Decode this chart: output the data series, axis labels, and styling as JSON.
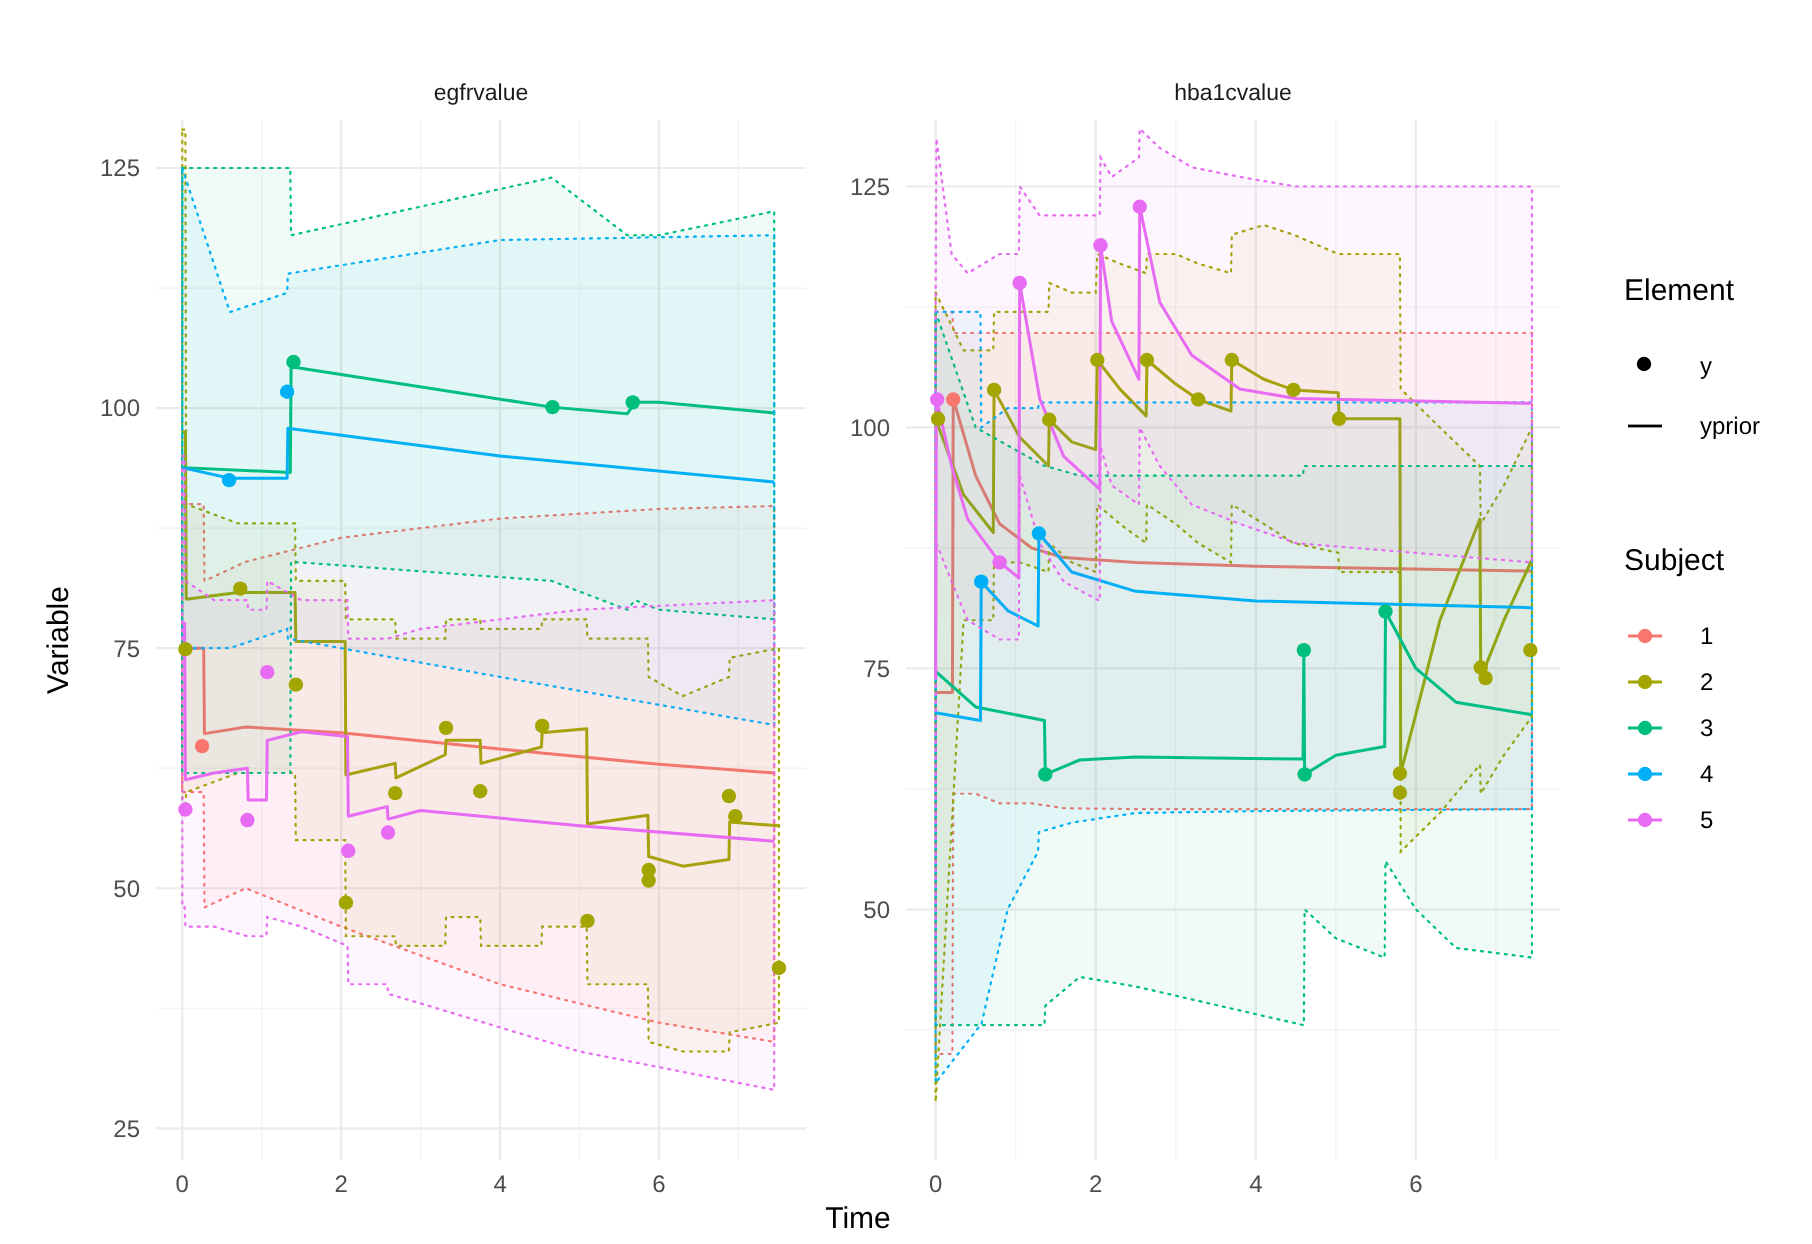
{
  "chart_data": [
    {
      "type": "line",
      "title": "egfrvalue",
      "xlabel": "Time",
      "ylabel": "Variable",
      "xlim": [
        -0.33,
        7.85
      ],
      "ylim": [
        21.7,
        130
      ],
      "xticks": [
        0,
        2,
        4,
        6
      ],
      "yticks": [
        25,
        50,
        75,
        100,
        125
      ],
      "grid": true,
      "legend": false,
      "line_style": "solid",
      "series": [
        {
          "marker": "none",
          "color": "#f8766d",
          "x": [
            0,
            0.27,
            0.28,
            0.8,
            2,
            4,
            6,
            7.45
          ],
          "values": [
            75,
            75,
            66.1,
            66.8,
            66.2,
            64.5,
            62.9,
            62
          ],
          "upper": [
            90,
            90,
            82,
            84,
            86.5,
            88.5,
            89.5,
            89.8
          ],
          "lower": [
            60,
            60,
            48,
            50,
            46,
            40,
            36,
            34
          ]
        },
        {
          "marker": "none",
          "color": "#a3a500",
          "x": [
            0,
            0.04,
            0.05,
            0.7,
            1.42,
            1.43,
            2.05,
            2.06,
            2.68,
            2.69,
            3.31,
            3.32,
            3.75,
            3.76,
            4.52,
            4.53,
            5.09,
            5.1,
            5.86,
            5.87,
            6.3,
            6.88,
            6.89,
            7.51
          ],
          "values": [
            97.5,
            97.5,
            80.1,
            80.8,
            80.8,
            75.7,
            75.7,
            61.8,
            63,
            61.5,
            63.9,
            65.4,
            65.4,
            63,
            64.7,
            66.2,
            66.6,
            56.7,
            57.6,
            53.3,
            52.3,
            53,
            56.9,
            56.5
          ],
          "upper": [
            129,
            129,
            90,
            88,
            88,
            82,
            82,
            78,
            78,
            76,
            76,
            78,
            78,
            77,
            77,
            78,
            78,
            76,
            76,
            72,
            70,
            72,
            74,
            75
          ],
          "lower": [
            58,
            58,
            60,
            62,
            62,
            55,
            55,
            45,
            45,
            44,
            44,
            47,
            47,
            44,
            44,
            46,
            46,
            40,
            40,
            34,
            33,
            33,
            35,
            36
          ]
        },
        {
          "marker": "none",
          "color": "#00bf7d",
          "x": [
            0,
            1.36,
            1.37,
            4.65,
            5.6,
            5.7,
            6,
            7.45
          ],
          "values": [
            93.8,
            93.3,
            104.3,
            100.1,
            99.4,
            100.6,
            100.6,
            99.5
          ],
          "upper": [
            125,
            125,
            118,
            124,
            118,
            118,
            118,
            120.5
          ],
          "lower": [
            62,
            62,
            84,
            82,
            79,
            80,
            79,
            78
          ]
        },
        {
          "marker": "none",
          "color": "#00b0f6",
          "x": [
            0,
            0.6,
            1.32,
            1.33,
            4,
            7.45
          ],
          "values": [
            93.8,
            92.7,
            92.7,
            97.9,
            95,
            92.3
          ],
          "upper": [
            125,
            110,
            112,
            114,
            117.5,
            118
          ],
          "lower": [
            75,
            75,
            77,
            76,
            72,
            67
          ]
        },
        {
          "marker": "none",
          "color": "#e76bf3",
          "x": [
            0,
            0.03,
            0.04,
            0.4,
            0.82,
            0.83,
            1.06,
            1.07,
            1.5,
            2.08,
            2.09,
            2.58,
            2.59,
            3,
            5,
            7.45
          ],
          "values": [
            77.6,
            77.6,
            61.3,
            62,
            62.5,
            59.2,
            59.2,
            65.4,
            66.3,
            65.8,
            57.5,
            58.5,
            57.2,
            58.1,
            56.5,
            54.9
          ],
          "upper": [
            95,
            95,
            82,
            80,
            80,
            79,
            79,
            82,
            80,
            80,
            76,
            76,
            76,
            77,
            79,
            80
          ],
          "lower": [
            48,
            48,
            46,
            46,
            45,
            45,
            45,
            47,
            46,
            44,
            40,
            40,
            39,
            38,
            33,
            29
          ]
        },
        {
          "type": "scatter",
          "marker": "circle",
          "color": "#f8766d",
          "x": [
            0.25
          ],
          "values": [
            64.8
          ]
        },
        {
          "type": "scatter",
          "marker": "circle",
          "color": "#a3a500",
          "x": [
            0.04,
            0.73,
            1.43,
            2.06,
            2.68,
            3.32,
            3.75,
            4.53,
            5.1,
            5.87,
            5.87,
            6.88,
            6.96,
            7.51
          ],
          "values": [
            74.9,
            81.2,
            71.2,
            48.5,
            59.9,
            66.7,
            60.1,
            66.9,
            46.6,
            51.9,
            50.8,
            59.6,
            57.5,
            41.7
          ]
        },
        {
          "type": "scatter",
          "marker": "circle",
          "color": "#00bf7d",
          "x": [
            1.4,
            4.66,
            5.67
          ],
          "values": [
            104.8,
            100.1,
            100.6
          ]
        },
        {
          "type": "scatter",
          "marker": "circle",
          "color": "#00b0f6",
          "x": [
            0.59,
            1.32
          ],
          "values": [
            92.5,
            101.7
          ]
        },
        {
          "type": "scatter",
          "marker": "circle",
          "color": "#e76bf3",
          "x": [
            0.04,
            0.82,
            1.07,
            2.09,
            2.59
          ],
          "values": [
            58.2,
            57.1,
            72.5,
            53.9,
            55.8
          ]
        }
      ]
    },
    {
      "type": "line",
      "title": "hba1cvalue",
      "xlim": [
        -0.37,
        7.8
      ],
      "ylim": [
        24,
        131.9
      ],
      "xticks": [
        0,
        2,
        4,
        6
      ],
      "yticks": [
        50,
        75,
        100,
        125
      ],
      "grid": true,
      "legend": "right",
      "legend_title": "Subject",
      "annotations": [
        "Element",
        "y",
        "yprior"
      ],
      "line_style": "solid",
      "series": [
        {
          "marker": "none",
          "name": "1",
          "color": "#f8766d",
          "x": [
            0,
            0.21,
            0.22,
            0.5,
            0.8,
            1.2,
            1.6,
            2.5,
            4,
            7.45
          ],
          "values": [
            72.5,
            72.5,
            103,
            95,
            90,
            87.5,
            86.5,
            86,
            85.6,
            85.1
          ],
          "upper": [
            112,
            112,
            109.8,
            109.8,
            109.8,
            109.8,
            109.8,
            109.8,
            109.8,
            109.8
          ],
          "lower": [
            35,
            35,
            62,
            62,
            61,
            61,
            60.5,
            60.4,
            60.4,
            60.4
          ]
        },
        {
          "marker": "none",
          "name": "2",
          "color": "#a3a500",
          "x": [
            0,
            0.35,
            0.72,
            0.73,
            1.05,
            1.41,
            1.42,
            1.7,
            2,
            2.02,
            2.3,
            2.63,
            2.64,
            3,
            3.28,
            3.69,
            3.7,
            4.1,
            4.47,
            5.03,
            5.04,
            5.8,
            5.81,
            6.3,
            6.8,
            6.81,
            7.1,
            7.45
          ],
          "values": [
            100.9,
            93,
            89.1,
            103.9,
            99,
            96,
            100.8,
            98.5,
            97.7,
            107,
            104,
            101.2,
            107,
            104.5,
            102.9,
            101.7,
            107,
            105,
            103.9,
            103.6,
            100.9,
            100.9,
            64.1,
            80,
            90.5,
            74,
            80,
            86.3
          ],
          "upper": [
            114,
            108,
            108,
            112,
            112,
            112,
            115,
            114,
            114,
            118,
            117,
            116,
            118,
            118,
            117,
            116,
            120,
            121,
            120,
            118,
            118,
            118,
            104,
            100,
            96,
            90,
            94,
            100
          ],
          "lower": [
            30,
            80,
            80,
            86,
            86,
            85,
            88,
            86,
            85,
            92,
            90,
            88,
            92,
            90,
            88,
            86,
            92,
            90,
            88,
            87,
            85,
            85,
            56,
            60,
            65,
            62,
            66,
            70
          ]
        },
        {
          "marker": "none",
          "name": "3",
          "color": "#00bf7d",
          "x": [
            0,
            0.5,
            1.36,
            1.37,
            1.8,
            2.5,
            4.59,
            4.6,
            4.61,
            5,
            5.61,
            5.62,
            6,
            6.5,
            7.45
          ],
          "values": [
            74.7,
            71,
            69.6,
            64,
            65.5,
            65.8,
            65.6,
            76.9,
            64,
            66,
            66.9,
            80.9,
            75,
            71.5,
            70.2
          ],
          "upper": [
            112,
            100,
            96,
            96,
            95,
            95,
            95,
            96,
            96,
            96,
            96,
            96,
            96,
            96,
            96
          ],
          "lower": [
            38,
            38,
            38,
            40,
            43,
            42,
            38,
            38,
            50,
            47,
            45,
            55,
            50,
            46,
            45
          ]
        },
        {
          "marker": "none",
          "name": "4",
          "color": "#00b0f6",
          "x": [
            0,
            0.56,
            0.57,
            0.9,
            1.28,
            1.29,
            1.7,
            2.5,
            4,
            7.45
          ],
          "values": [
            70.4,
            69.6,
            84,
            81,
            79.4,
            89,
            85,
            83,
            82,
            81.3
          ],
          "upper": [
            112,
            112,
            100,
            102,
            102,
            102.6,
            102.6,
            102.6,
            102.6,
            102.6
          ],
          "lower": [
            32,
            38,
            38,
            50,
            56,
            58,
            59,
            60,
            60.2,
            60.4
          ]
        },
        {
          "marker": "none",
          "name": "5",
          "color": "#e76bf3",
          "x": [
            0,
            0.01,
            0.2,
            0.4,
            0.8,
            1.04,
            1.05,
            1.3,
            1.6,
            2.05,
            2.06,
            2.2,
            2.54,
            2.55,
            2.8,
            3.2,
            3.8,
            4.5,
            7.45
          ],
          "values": [
            74,
            103,
            96,
            90.5,
            86,
            84.4,
            115,
            103,
            97,
            93.6,
            118.9,
            111,
            105,
            122.9,
            113,
            107.5,
            104,
            103,
            102.5
          ],
          "upper": [
            112,
            130,
            118,
            116,
            118,
            118,
            125,
            122,
            122,
            122,
            128,
            126,
            128,
            131,
            129,
            127,
            126,
            125,
            125
          ],
          "lower": [
            40,
            88,
            84,
            80,
            78,
            78,
            95,
            88,
            84,
            82,
            98,
            94,
            92,
            100,
            96,
            92,
            90,
            88,
            86
          ]
        },
        {
          "type": "scatter",
          "marker": "circle",
          "color": "#f8766d",
          "x": [
            0.22
          ],
          "values": [
            102.9
          ]
        },
        {
          "type": "scatter",
          "marker": "circle",
          "color": "#a3a500",
          "x": [
            0.03,
            0.73,
            1.42,
            2.02,
            2.64,
            3.28,
            3.7,
            4.47,
            5.04,
            5.8,
            5.8,
            6.81,
            6.87,
            7.43
          ],
          "values": [
            100.9,
            103.9,
            100.8,
            107,
            107,
            102.9,
            107,
            103.9,
            100.9,
            64.1,
            62.1,
            75.1,
            74,
            76.9
          ]
        },
        {
          "type": "scatter",
          "marker": "circle",
          "color": "#00bf7d",
          "x": [
            1.37,
            4.6,
            4.61,
            5.62
          ],
          "values": [
            64,
            76.9,
            64,
            80.9
          ]
        },
        {
          "type": "scatter",
          "marker": "circle",
          "color": "#00b0f6",
          "x": [
            0.57,
            1.29
          ],
          "values": [
            84,
            89
          ]
        },
        {
          "type": "scatter",
          "marker": "circle",
          "color": "#e76bf3",
          "x": [
            0.02,
            0.8,
            1.05,
            2.06,
            2.55
          ],
          "values": [
            102.9,
            86,
            115,
            118.9,
            122.9
          ]
        }
      ]
    }
  ]
}
